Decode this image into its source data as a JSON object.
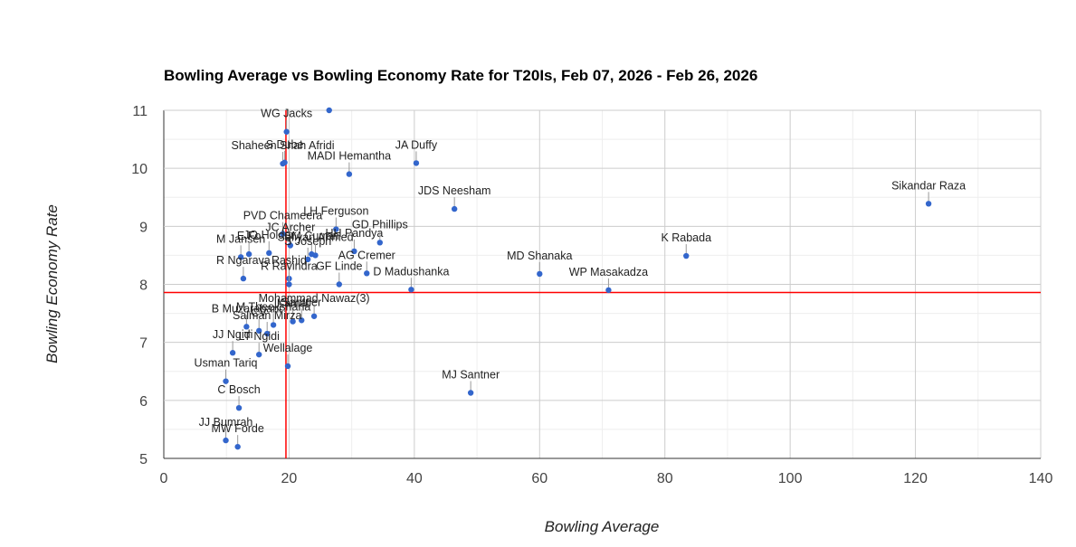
{
  "chart_data": {
    "type": "scatter",
    "title": "Bowling Average vs Bowling Economy Rate for T20Is, Feb 07, 2026 - Feb 26, 2026",
    "xlabel": "Bowling Average",
    "ylabel": "Bowling Economy Rate",
    "xlim": [
      0,
      140
    ],
    "ylim": [
      5,
      11
    ],
    "xticks": [
      0,
      20,
      40,
      60,
      80,
      100,
      120,
      140
    ],
    "yticks": [
      5,
      6,
      7,
      8,
      9,
      10,
      11
    ],
    "grid": true,
    "point_color": "#3366cc",
    "reference_line_color": "#ff0000",
    "reference_lines": {
      "x": 19.5,
      "y": 7.86
    },
    "points": [
      {
        "label": "",
        "x": 26.4,
        "y": 11.0
      },
      {
        "label": "WG Jacks",
        "x": 19.6,
        "y": 10.63
      },
      {
        "label": "Shaheen Shah Afridi",
        "x": 19.0,
        "y": 10.08
      },
      {
        "label": "S Dube",
        "x": 19.3,
        "y": 10.1
      },
      {
        "label": "MADI Hemantha",
        "x": 29.6,
        "y": 9.9
      },
      {
        "label": "JA Duffy",
        "x": 40.3,
        "y": 10.09
      },
      {
        "label": "JDS Neesham",
        "x": 46.4,
        "y": 9.3
      },
      {
        "label": "Sikandar Raza",
        "x": 122.1,
        "y": 9.39
      },
      {
        "label": "LH Ferguson",
        "x": 27.5,
        "y": 8.95
      },
      {
        "label": "PVD Chameera",
        "x": 19.0,
        "y": 8.87
      },
      {
        "label": "JC Archer",
        "x": 20.2,
        "y": 8.67
      },
      {
        "label": "HH Pandya",
        "x": 30.4,
        "y": 8.57
      },
      {
        "label": "GD Phillips",
        "x": 34.5,
        "y": 8.72
      },
      {
        "label": "JO Holder",
        "x": 16.8,
        "y": 8.54
      },
      {
        "label": "SM Curran",
        "x": 23.6,
        "y": 8.52
      },
      {
        "label": "M Jansen",
        "x": 12.3,
        "y": 8.47
      },
      {
        "label": "E Fo",
        "x": 13.6,
        "y": 8.52
      },
      {
        "label": "S Joseph",
        "x": 23.0,
        "y": 8.43
      },
      {
        "label": "Sufiyan Ahmed",
        "x": 24.2,
        "y": 8.5
      },
      {
        "label": "AG Cremer",
        "x": 32.4,
        "y": 8.19
      },
      {
        "label": "R Ngarava",
        "x": 12.7,
        "y": 8.1
      },
      {
        "label": "Rashid",
        "x": 20.0,
        "y": 8.1
      },
      {
        "label": "GF Linde",
        "x": 28.0,
        "y": 8.0
      },
      {
        "label": "D Madushanka",
        "x": 39.5,
        "y": 7.91
      },
      {
        "label": "MD Shanaka",
        "x": 60.0,
        "y": 8.18
      },
      {
        "label": "K Rabada",
        "x": 83.4,
        "y": 8.49
      },
      {
        "label": "WP Masakadza",
        "x": 71.0,
        "y": 7.9
      },
      {
        "label": "R Ravindra",
        "x": 20.0,
        "y": 8.0
      },
      {
        "label": "Mohammad Nawaz(3)",
        "x": 24.0,
        "y": 7.45
      },
      {
        "label": "Santner",
        "x": 22.0,
        "y": 7.38
      },
      {
        "label": "Kamal",
        "x": 20.6,
        "y": 7.36
      },
      {
        "label": "M Theekshana",
        "x": 17.5,
        "y": 7.3
      },
      {
        "label": "B Muzarabani",
        "x": 13.2,
        "y": 7.27
      },
      {
        "label": "CV",
        "x": 15.2,
        "y": 7.2
      },
      {
        "label": "Salman Mirza",
        "x": 16.5,
        "y": 7.15
      },
      {
        "label": "JJ Ngidi",
        "x": 11.0,
        "y": 6.82
      },
      {
        "label": "LT Ngidi",
        "x": 15.2,
        "y": 6.79
      },
      {
        "label": "Wellalage",
        "x": 19.8,
        "y": 6.59
      },
      {
        "label": "Usman Tariq",
        "x": 9.9,
        "y": 6.33
      },
      {
        "label": "MJ Santner",
        "x": 49.0,
        "y": 6.13
      },
      {
        "label": "C Bosch",
        "x": 12.0,
        "y": 5.87
      },
      {
        "label": "JJ Bumrah",
        "x": 9.9,
        "y": 5.31
      },
      {
        "label": "MW Forde",
        "x": 11.8,
        "y": 5.2
      }
    ]
  }
}
